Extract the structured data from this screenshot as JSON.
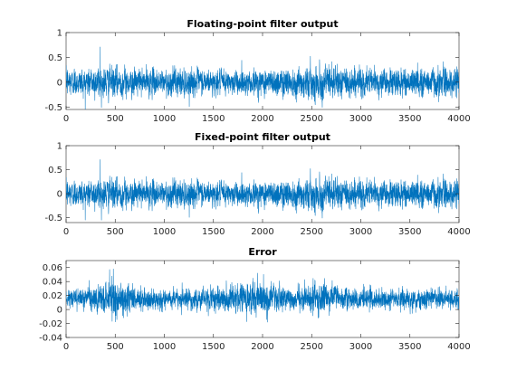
{
  "chart_data": [
    {
      "type": "line",
      "title": "Floating-point filter output",
      "xlim": [
        0,
        4000
      ],
      "ylim": [
        -0.55,
        1
      ],
      "xticks": [
        0,
        500,
        1000,
        1500,
        2000,
        2500,
        3000,
        3500,
        4000
      ],
      "yticks": [
        -0.5,
        0,
        0.5,
        1
      ],
      "ytick_labels": [
        "-0.5",
        "0",
        "0.5",
        "1"
      ],
      "grid": false,
      "color": "#0072BD",
      "series": [
        {
          "n_samples": 4000,
          "mean": 0.0,
          "std": 0.13,
          "max": 0.71,
          "max_at": 345,
          "min": -0.55,
          "envelope": [
            [
              0,
              0.13
            ],
            [
              400,
              0.15
            ],
            [
              800,
              0.12
            ],
            [
              1200,
              0.13
            ],
            [
              1600,
              0.11
            ],
            [
              2000,
              0.13
            ],
            [
              2400,
              0.14
            ],
            [
              2600,
              0.16
            ],
            [
              3000,
              0.13
            ],
            [
              3400,
              0.12
            ],
            [
              3700,
              0.15
            ],
            [
              4000,
              0.13
            ]
          ]
        }
      ]
    },
    {
      "type": "line",
      "title": "Fixed-point filter output",
      "xlim": [
        0,
        4000
      ],
      "ylim": [
        -0.6,
        1
      ],
      "xticks": [
        0,
        500,
        1000,
        1500,
        2000,
        2500,
        3000,
        3500,
        4000
      ],
      "yticks": [
        -0.5,
        0,
        0.5,
        1
      ],
      "ytick_labels": [
        "-0.5",
        "0",
        "0.5",
        "1"
      ],
      "grid": false,
      "color": "#0072BD",
      "series": [
        {
          "n_samples": 4000,
          "mean": 0.0,
          "std": 0.13,
          "max": 0.71,
          "max_at": 345,
          "min": -0.58,
          "envelope": [
            [
              0,
              0.13
            ],
            [
              400,
              0.15
            ],
            [
              800,
              0.12
            ],
            [
              1200,
              0.13
            ],
            [
              1600,
              0.11
            ],
            [
              2000,
              0.13
            ],
            [
              2400,
              0.14
            ],
            [
              2600,
              0.16
            ],
            [
              3000,
              0.13
            ],
            [
              3400,
              0.12
            ],
            [
              3700,
              0.15
            ],
            [
              4000,
              0.13
            ]
          ]
        }
      ]
    },
    {
      "type": "line",
      "title": "Error",
      "xlim": [
        0,
        4000
      ],
      "ylim": [
        -0.04,
        0.07
      ],
      "xticks": [
        0,
        500,
        1000,
        1500,
        2000,
        2500,
        3000,
        3500,
        4000
      ],
      "yticks": [
        -0.04,
        -0.02,
        0,
        0.02,
        0.04,
        0.06
      ],
      "ytick_labels": [
        "-0.04",
        "-0.02",
        "0",
        "0.02",
        "0.04",
        "0.06"
      ],
      "grid": false,
      "color": "#0072BD",
      "series": [
        {
          "n_samples": 4000,
          "mean": 0.015,
          "max": 0.058,
          "max_at": 480,
          "min": -0.018,
          "min_at": 2050,
          "envelope": [
            [
              0,
              0.005
            ],
            [
              300,
              0.008
            ],
            [
              480,
              0.014
            ],
            [
              700,
              0.009
            ],
            [
              1000,
              0.006
            ],
            [
              1500,
              0.007
            ],
            [
              1750,
              0.011
            ],
            [
              2050,
              0.012
            ],
            [
              2300,
              0.006
            ],
            [
              2550,
              0.012
            ],
            [
              2800,
              0.008
            ],
            [
              3200,
              0.006
            ],
            [
              3700,
              0.007
            ],
            [
              4000,
              0.006
            ]
          ]
        }
      ]
    }
  ]
}
